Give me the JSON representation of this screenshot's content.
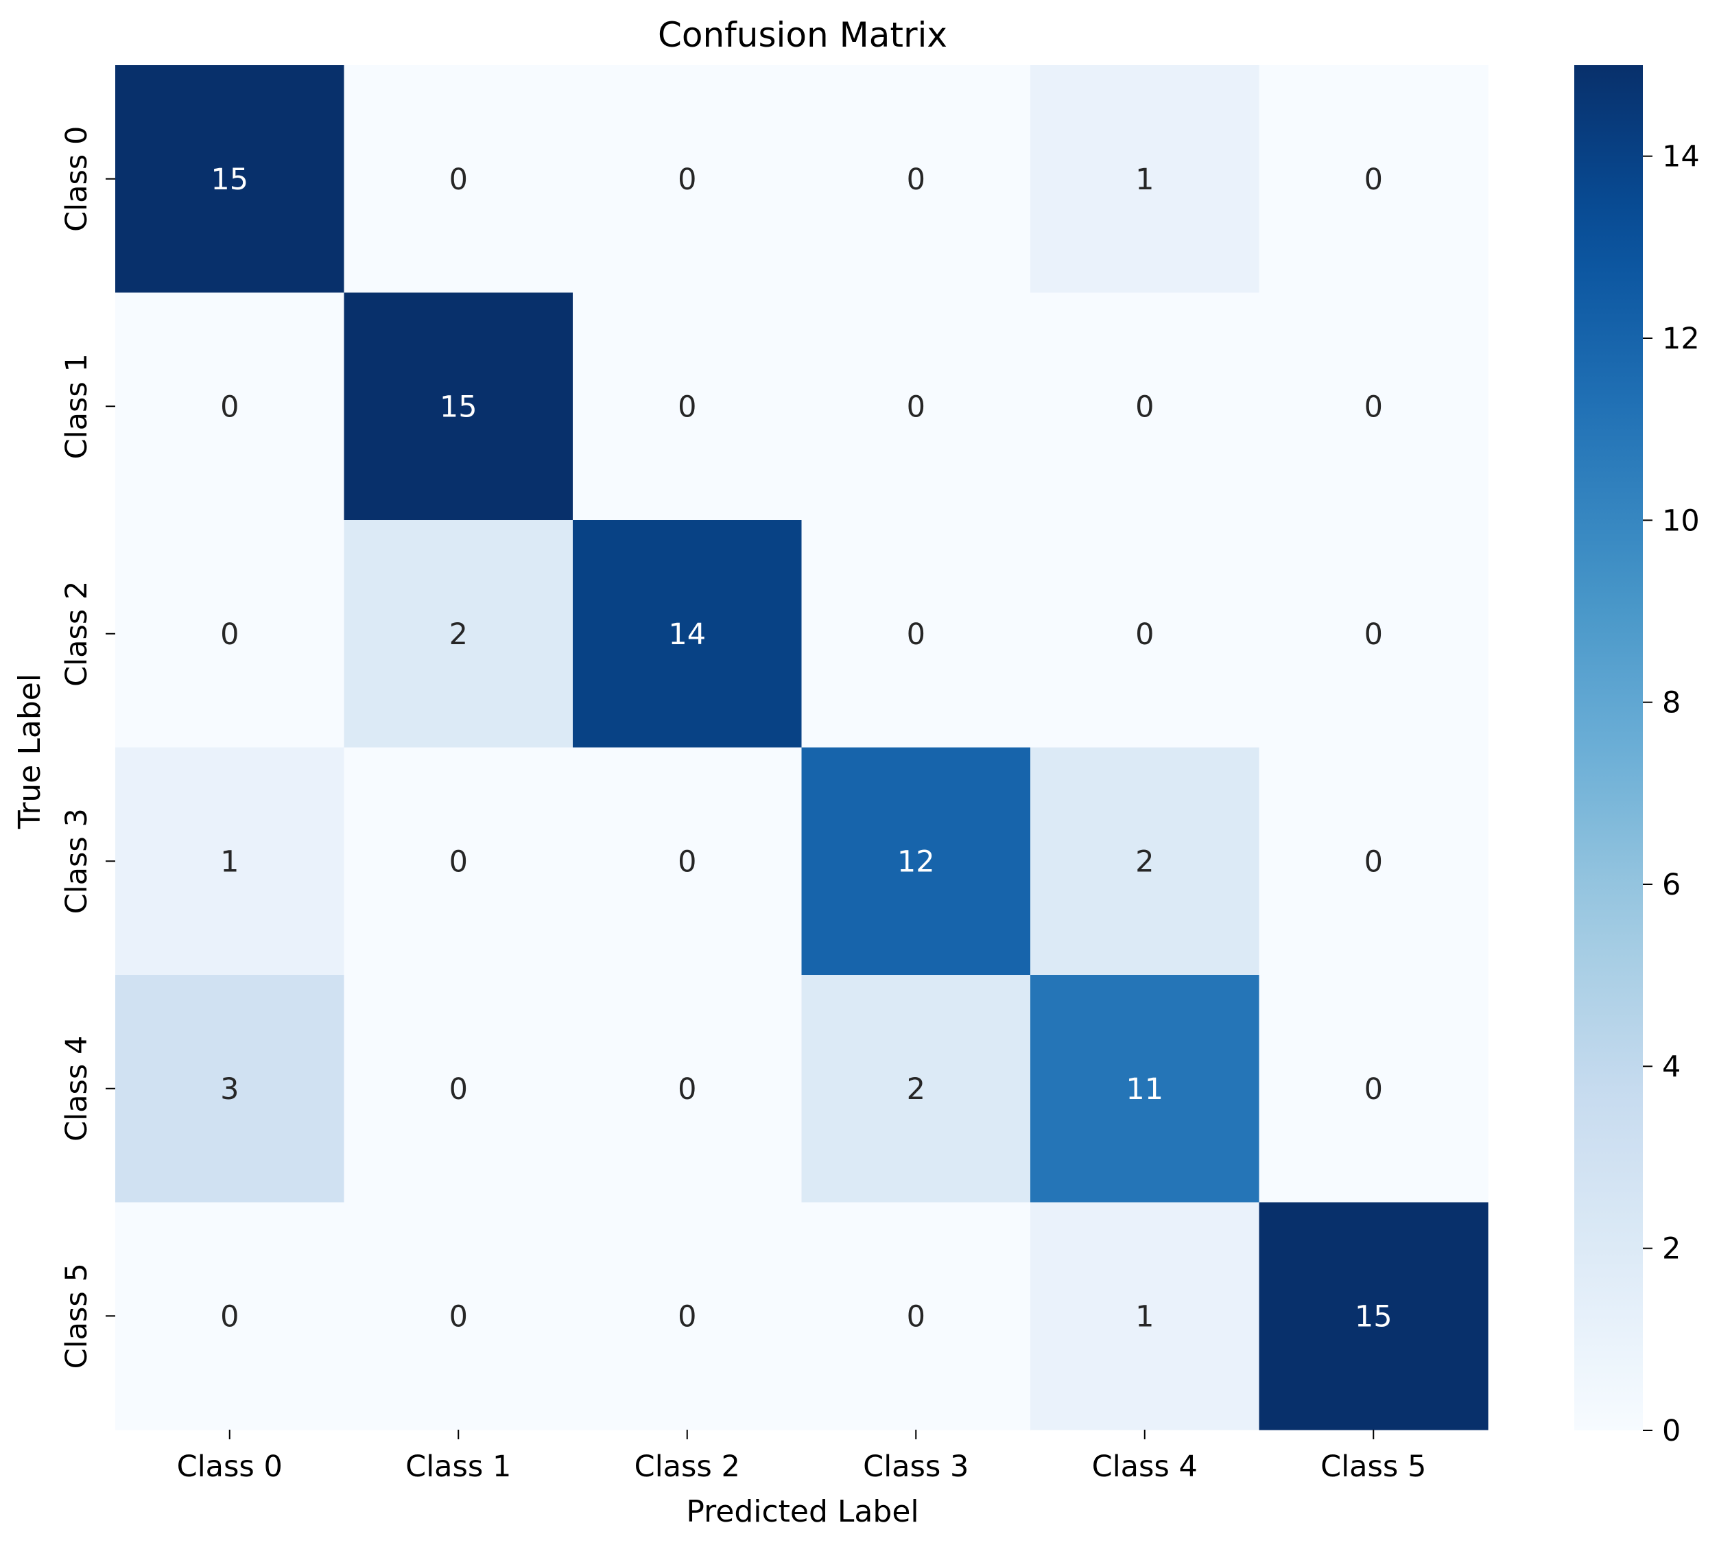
{
  "chart_data": {
    "type": "heatmap",
    "title": "Confusion Matrix",
    "xlabel": "Predicted Label",
    "ylabel": "True Label",
    "x_categories": [
      "Class 0",
      "Class 1",
      "Class 2",
      "Class 3",
      "Class 4",
      "Class 5"
    ],
    "y_categories": [
      "Class 0",
      "Class 1",
      "Class 2",
      "Class 3",
      "Class 4",
      "Class 5"
    ],
    "values": [
      [
        15,
        0,
        0,
        0,
        1,
        0
      ],
      [
        0,
        15,
        0,
        0,
        0,
        0
      ],
      [
        0,
        2,
        14,
        0,
        0,
        0
      ],
      [
        1,
        0,
        0,
        12,
        2,
        0
      ],
      [
        3,
        0,
        0,
        2,
        11,
        0
      ],
      [
        0,
        0,
        0,
        0,
        1,
        15
      ]
    ],
    "colormap": "Blues",
    "colormap_stops": [
      "#f7fbff",
      "#deebf7",
      "#c6dbef",
      "#9ecae1",
      "#6baed6",
      "#4292c6",
      "#2171b5",
      "#08519c",
      "#08306b"
    ],
    "vmin": 0,
    "vmax": 15,
    "colorbar_ticks": [
      0,
      2,
      4,
      6,
      8,
      10,
      12,
      14
    ],
    "annot_light_color": "#ffffff",
    "annot_dark_color": "#262626"
  }
}
